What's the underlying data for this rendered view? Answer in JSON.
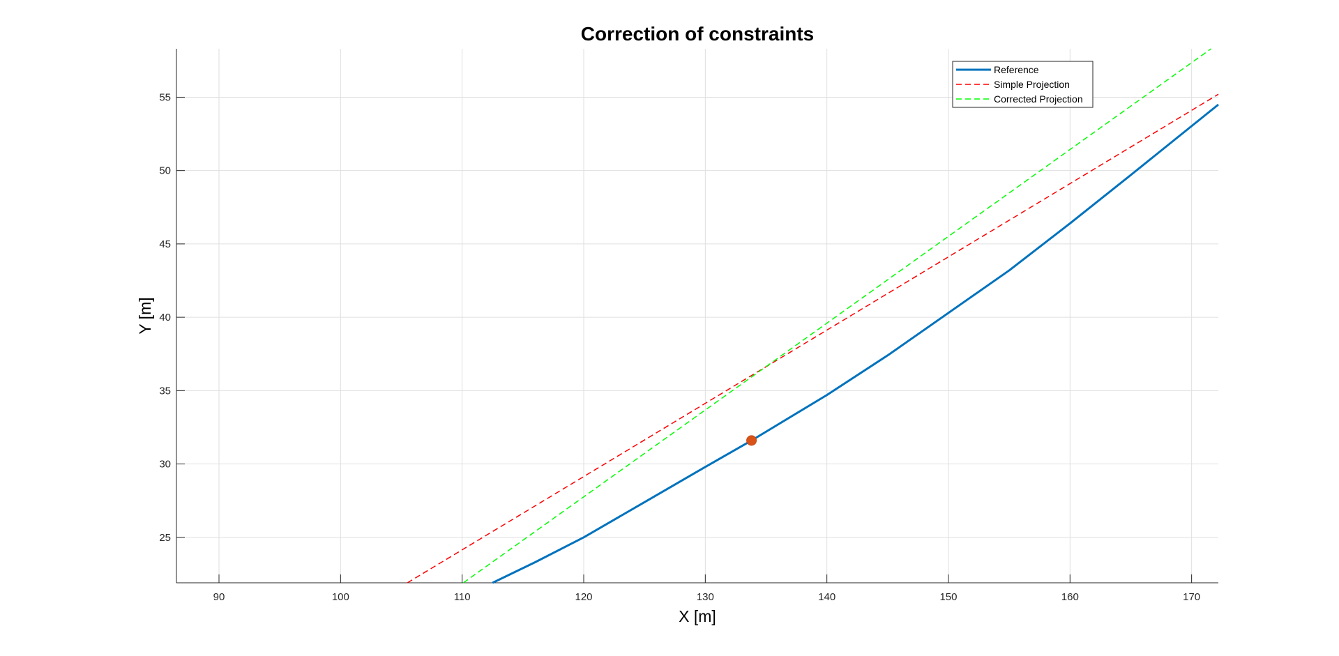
{
  "chart_data": {
    "type": "line",
    "title": "Correction of constraints",
    "xlabel": "X [m]",
    "ylabel": "Y [m]",
    "xlim": [
      86.5,
      172.2
    ],
    "ylim": [
      21.9,
      58.3
    ],
    "xticks": [
      90,
      100,
      110,
      120,
      130,
      140,
      150,
      160,
      170
    ],
    "yticks": [
      25,
      30,
      35,
      40,
      45,
      50,
      55
    ],
    "grid": true,
    "legend_position": "top-right",
    "series": [
      {
        "name": "Reference",
        "style": "solid",
        "color": "#0072BD",
        "x": [
          112.5,
          116,
          120,
          125,
          130,
          133.8,
          140,
          145,
          150,
          155,
          160,
          165,
          172.2
        ],
        "y": [
          21.9,
          23.3,
          25.0,
          27.4,
          29.8,
          31.6,
          34.7,
          37.4,
          40.3,
          43.2,
          46.4,
          49.7,
          54.5
        ]
      },
      {
        "name": "Simple Projection",
        "style": "dashed",
        "color": "#FF0000",
        "x": [
          105.5,
          172.2
        ],
        "y": [
          21.9,
          55.2
        ]
      },
      {
        "name": "Corrected Projection",
        "style": "dashed",
        "color": "#00FF00",
        "x": [
          110.1,
          171.6
        ],
        "y": [
          21.9,
          58.3
        ]
      }
    ],
    "marker": {
      "x": 133.8,
      "y": 31.6,
      "color": "#D95319"
    }
  }
}
